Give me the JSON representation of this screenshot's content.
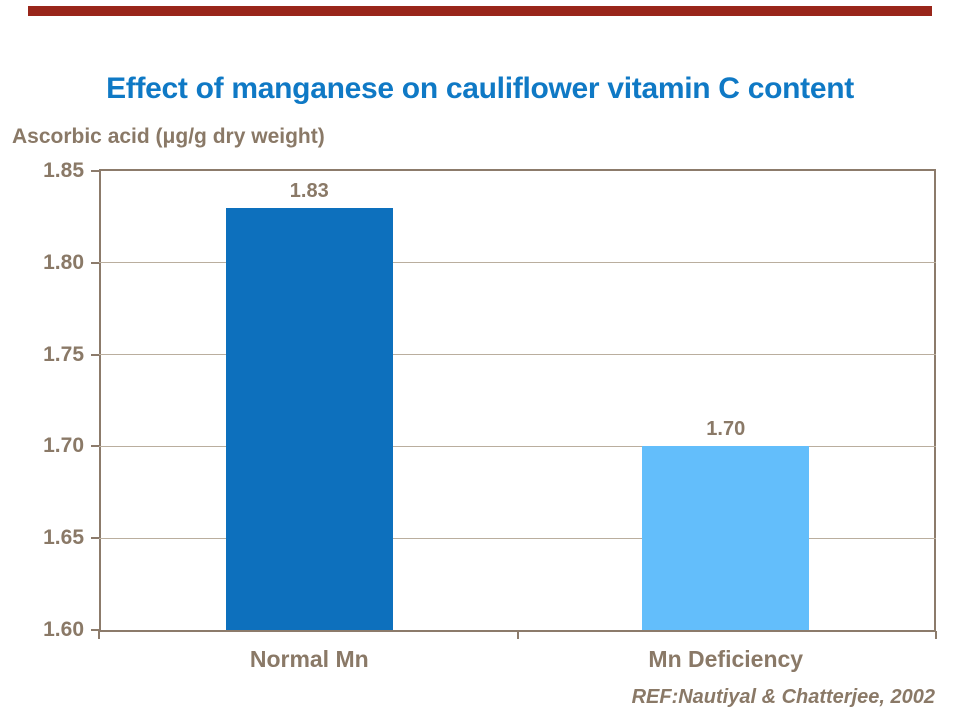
{
  "page": {
    "background": "#FFFFFF",
    "accent_bar_color": "#99261A"
  },
  "chart_data": {
    "type": "bar",
    "title": "Effect of manganese on cauliflower vitamin C content",
    "title_color": "#0F79C5",
    "ylabel": "Ascorbic acid (μg/g dry weight)",
    "xlabel": "",
    "categories": [
      "Normal Mn",
      "Mn Deficiency"
    ],
    "values": [
      1.83,
      1.7
    ],
    "data_labels": [
      "1.83",
      "1.70"
    ],
    "bar_colors": [
      "#0D70BD",
      "#63BEFB"
    ],
    "ylim": [
      1.6,
      1.85
    ],
    "yticks": [
      1.85,
      1.8,
      1.75,
      1.7,
      1.65,
      1.6
    ],
    "ytick_labels": [
      "1.85",
      "1.80",
      "1.75",
      "1.70",
      "1.65",
      "1.60"
    ],
    "grid": true,
    "legend": false,
    "axis_color": "#8C7B6B",
    "gridline_color": "#BAAE9E",
    "label_color": "#8A7967"
  },
  "footer": {
    "reference": "REF:Nautiyal & Chatterjee, 2002"
  }
}
